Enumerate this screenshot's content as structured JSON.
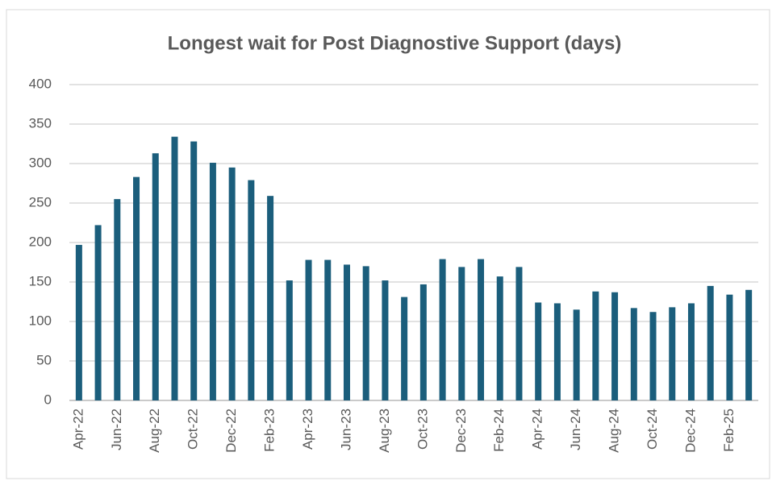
{
  "chart_data": {
    "type": "bar",
    "title": "Longest wait for Post Diagnostive Support (days)",
    "categories": [
      "Apr-22",
      null,
      "Jun-22",
      null,
      "Aug-22",
      null,
      "Oct-22",
      null,
      "Dec-22",
      null,
      "Feb-23",
      null,
      "Apr-23",
      null,
      "Jun-23",
      null,
      "Aug-23",
      null,
      "Oct-23",
      null,
      "Dec-23",
      null,
      "Feb-24",
      null,
      "Apr-24",
      null,
      "Jun-24",
      null,
      "Aug-24",
      null,
      "Oct-24",
      null,
      "Dec-24",
      null,
      "Feb-25",
      null
    ],
    "values": [
      197,
      222,
      255,
      283,
      313,
      334,
      328,
      301,
      295,
      279,
      259,
      152,
      178,
      178,
      172,
      170,
      152,
      131,
      147,
      179,
      169,
      179,
      157,
      169,
      124,
      123,
      115,
      138,
      137,
      117,
      112,
      118,
      123,
      145,
      134,
      140
    ],
    "color": "#1b5e7c",
    "ylim": [
      0,
      400
    ],
    "yticks": [
      0,
      50,
      100,
      150,
      200,
      250,
      300,
      350,
      400
    ],
    "grid": true
  }
}
